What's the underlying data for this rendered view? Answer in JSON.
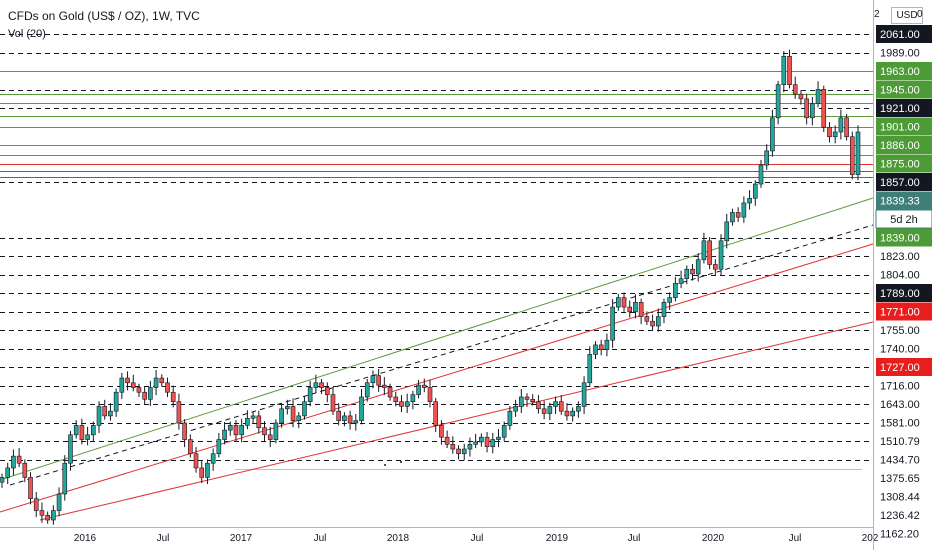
{
  "header": {
    "title": "CFDs on Gold (US$ / OZ), 1W, TVC",
    "indicator": "Vol (20)",
    "currency_button": "USD",
    "top_tick_left": "2",
    "top_tick_right": "0"
  },
  "chart_data": {
    "type": "candlestick",
    "price_scale": {
      "ticks": [
        "2061.00",
        "1989.00",
        "1963.00",
        "1945.00",
        "1921.00",
        "1901.00",
        "1886.00",
        "1875.00",
        "1857.00",
        "1839.33",
        "5d 2h",
        "1839.00",
        "1823.00",
        "1804.00",
        "1789.00",
        "1771.00",
        "1755.00",
        "1740.00",
        "1727.00",
        "1716.00",
        "1643.00",
        "1581.00",
        "1510.79",
        "1434.70",
        "1375.65",
        "1308.44",
        "1236.42",
        "1162.20"
      ]
    },
    "time_axis": {
      "labels": [
        "2016",
        "Jul",
        "2017",
        "Jul",
        "2018",
        "Jul",
        "2019",
        "Jul",
        "2020",
        "Jul",
        "202"
      ]
    },
    "tags": [
      {
        "text": "2061.00",
        "style": "black"
      },
      {
        "text": "1989.00",
        "style": "white"
      },
      {
        "text": "1963.00",
        "style": "green"
      },
      {
        "text": "1945.00",
        "style": "green"
      },
      {
        "text": "1921.00",
        "style": "black"
      },
      {
        "text": "1901.00",
        "style": "green"
      },
      {
        "text": "1886.00",
        "style": "green"
      },
      {
        "text": "1875.00",
        "style": "green"
      },
      {
        "text": "1857.00",
        "style": "black"
      },
      {
        "text": "1839.33",
        "style": "current"
      },
      {
        "text": "5d 2h",
        "style": "countdown"
      },
      {
        "text": "1839.00",
        "style": "green"
      },
      {
        "text": "1823.00",
        "style": "white"
      },
      {
        "text": "1804.00",
        "style": "white"
      },
      {
        "text": "1789.00",
        "style": "black"
      },
      {
        "text": "1771.00",
        "style": "red"
      },
      {
        "text": "1755.00",
        "style": "white"
      },
      {
        "text": "1740.00",
        "style": "white"
      },
      {
        "text": "1727.00",
        "style": "red"
      },
      {
        "text": "1716.00",
        "style": "white"
      },
      {
        "text": "1643.00",
        "style": "white"
      },
      {
        "text": "1581.00",
        "style": "white"
      },
      {
        "text": "1510.79",
        "style": "white"
      },
      {
        "text": "1434.70",
        "style": "white"
      },
      {
        "text": "1375.65",
        "style": "white"
      },
      {
        "text": "1308.44",
        "style": "white"
      },
      {
        "text": "1236.42",
        "style": "white"
      },
      {
        "text": "1162.20",
        "style": "white"
      }
    ],
    "key_prices": {
      "dashed_levels": [
        2061,
        1989,
        1945,
        1921,
        1857,
        1839,
        1823,
        1804,
        1789,
        1771,
        1755,
        1740,
        1727,
        1716,
        1643,
        1581,
        1510.79,
        1434.7
      ],
      "green_levels": [
        1963,
        1939,
        1928,
        1912,
        1901,
        1886,
        1880
      ],
      "red_levels": [
        1875,
        1868,
        1862
      ],
      "current_price": 1839.33,
      "peak": 2075,
      "annotation_line_price": 1405
    },
    "weekly_closes": {
      "start": "2015-09",
      "end": "2020-11",
      "series": [
        1140,
        1160,
        1185,
        1170,
        1140,
        1095,
        1070,
        1060,
        1050,
        1070,
        1105,
        1170,
        1230,
        1250,
        1220,
        1230,
        1250,
        1290,
        1270,
        1280,
        1320,
        1350,
        1340,
        1330,
        1320,
        1305,
        1330,
        1350,
        1340,
        1320,
        1300,
        1255,
        1220,
        1190,
        1160,
        1140,
        1170,
        1190,
        1220,
        1240,
        1250,
        1230,
        1250,
        1265,
        1270,
        1245,
        1230,
        1220,
        1255,
        1285,
        1290,
        1260,
        1270,
        1300,
        1330,
        1340,
        1330,
        1315,
        1280,
        1260,
        1270,
        1255,
        1260,
        1310,
        1340,
        1355,
        1335,
        1330,
        1310,
        1300,
        1290,
        1300,
        1315,
        1335,
        1330,
        1300,
        1250,
        1225,
        1210,
        1200,
        1190,
        1200,
        1210,
        1215,
        1225,
        1205,
        1220,
        1225,
        1250,
        1280,
        1290,
        1310,
        1305,
        1300,
        1285,
        1275,
        1290,
        1300,
        1280,
        1270,
        1280,
        1290,
        1340,
        1400,
        1420,
        1410,
        1430,
        1500,
        1520,
        1500,
        1490,
        1510,
        1480,
        1470,
        1460,
        1480,
        1510,
        1520,
        1550,
        1560,
        1580,
        1570,
        1600,
        1640,
        1590,
        1580,
        1640,
        1680,
        1700,
        1690,
        1720,
        1730,
        1760,
        1800,
        1830,
        1900,
        1970,
        2030,
        1970,
        1950,
        1940,
        1900,
        1930,
        1960,
        1880,
        1860,
        1870,
        1900,
        1860,
        1780,
        1870
      ]
    },
    "ylim": [
      1150,
      2120
    ],
    "grid": false
  },
  "colors": {
    "up": "#26a69a",
    "down": "#ef5350",
    "green_line": "#5b9b3c",
    "red_line": "#e03030",
    "tag_green": "#4c9b36",
    "tag_red": "#e61e1e",
    "tag_black": "#131722",
    "tag_current": "#3f7f7a"
  }
}
